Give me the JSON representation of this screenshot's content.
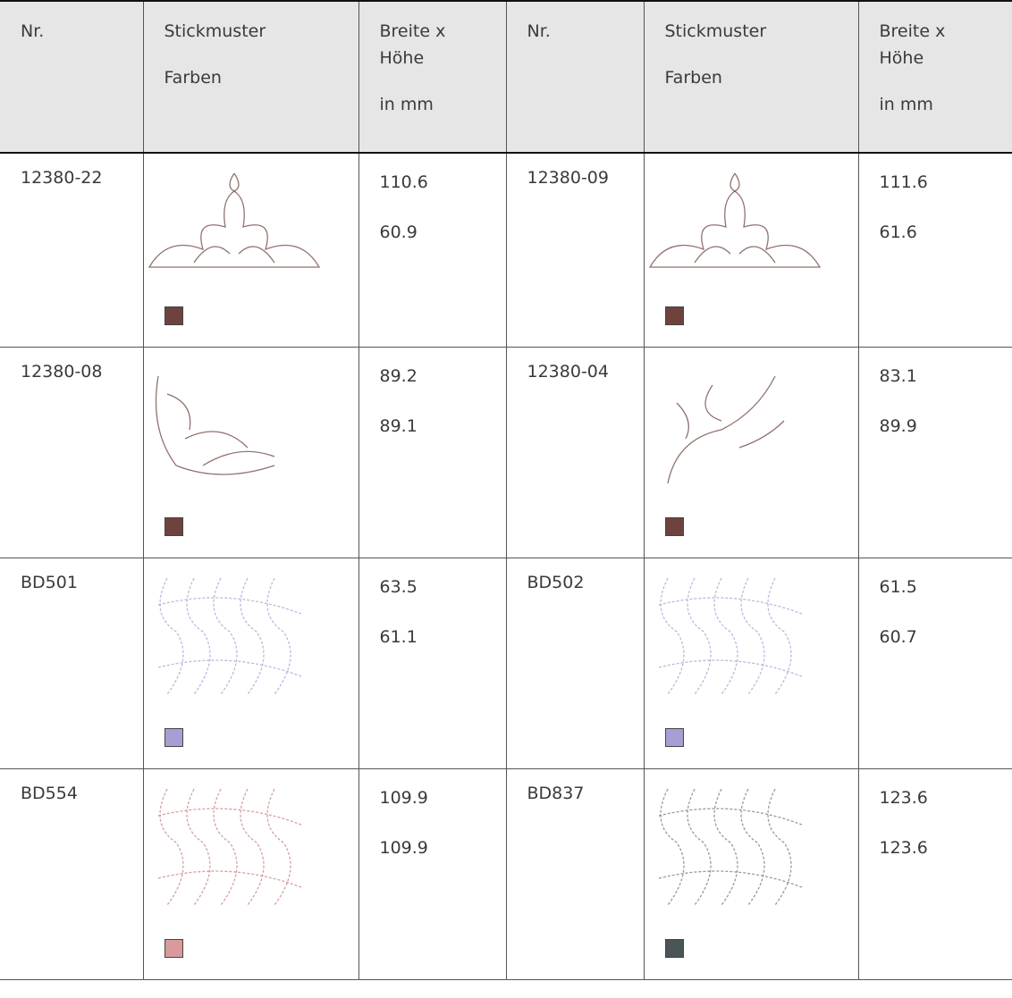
{
  "header": [
    [
      "Nr."
    ],
    [
      "Stickmuster",
      "Farben"
    ],
    [
      "Breite x",
      "Höhe",
      "in mm"
    ],
    [
      "Nr."
    ],
    [
      "Stickmuster",
      "Farben"
    ],
    [
      "Breite x",
      "Höhe",
      "in mm"
    ]
  ],
  "rows": [
    [
      {
        "nr": "12380-22",
        "swatch": "#6e433d",
        "width": "110.6",
        "height": "60.9"
      },
      {
        "nr": "12380-09",
        "swatch": "#6e433d",
        "width": "111.6",
        "height": "61.6"
      }
    ],
    [
      {
        "nr": "12380-08",
        "swatch": "#6e433d",
        "width": "89.2",
        "height": "89.1"
      },
      {
        "nr": "12380-04",
        "swatch": "#6e433d",
        "width": "83.1",
        "height": "89.9"
      }
    ],
    [
      {
        "nr": "BD501",
        "swatch": "#a79fd4",
        "width": "63.5",
        "height": "61.1"
      },
      {
        "nr": "BD502",
        "swatch": "#a79fd4",
        "width": "61.5",
        "height": "60.7"
      }
    ],
    [
      {
        "nr": "BD554",
        "swatch": "#d89a9a",
        "width": "109.9",
        "height": "109.9"
      },
      {
        "nr": "BD837",
        "swatch": "#4a5558",
        "width": "123.6",
        "height": "123.6"
      }
    ]
  ]
}
